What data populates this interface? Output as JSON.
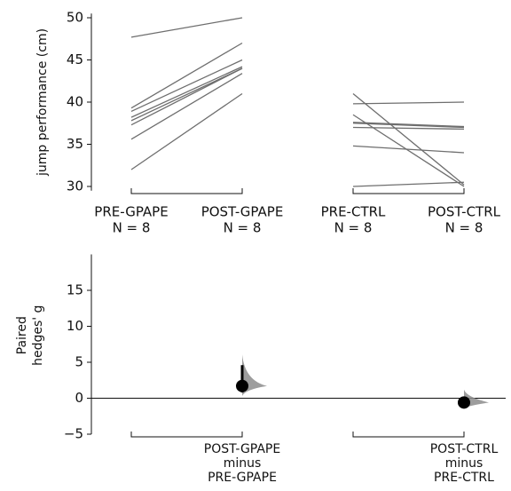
{
  "chart_data": [
    {
      "type": "slope",
      "ylabel": "jump performance (cm)",
      "categories": [
        "PRE-GPAPE",
        "POST-GPAPE",
        "PRE-CTRL",
        "POST-CTRL"
      ],
      "sample_sizes": [
        "N = 8",
        "N = 8",
        "N = 8",
        "N = 8"
      ],
      "ylim": [
        29.5,
        50.5
      ],
      "yticks": [
        30,
        35,
        40,
        45,
        50
      ],
      "color": "#6e6e6e",
      "groups": [
        {
          "pre": [
            47.7,
            39.3,
            38.9,
            38.2,
            37.8,
            37.3,
            35.6,
            32.0
          ],
          "post": [
            50.0,
            47.0,
            45.0,
            44.2,
            44.0,
            44.0,
            43.4,
            41.0
          ]
        },
        {
          "pre": [
            41.0,
            39.8,
            38.5,
            37.6,
            37.5,
            37.0,
            34.8,
            30.0
          ],
          "post": [
            30.2,
            40.0,
            30.0,
            37.1,
            37.0,
            36.8,
            34.0,
            30.5
          ]
        }
      ]
    },
    {
      "type": "effect",
      "ylabel": [
        "Paired",
        "hedges' g"
      ],
      "categories": [
        [
          "POST-GPAPE",
          "minus",
          "PRE-GPAPE"
        ],
        [
          "POST-CTRL",
          "minus",
          "PRE-CTRL"
        ]
      ],
      "ylim": [
        -5,
        20
      ],
      "yticks": [
        {
          "value": -5,
          "label": "−5"
        },
        0,
        5,
        10,
        15
      ],
      "values": [
        1.7,
        -0.6
      ],
      "ci": [
        [
          0.8,
          4.6
        ],
        [
          -0.9,
          -0.3
        ]
      ],
      "color": "#000000"
    }
  ]
}
